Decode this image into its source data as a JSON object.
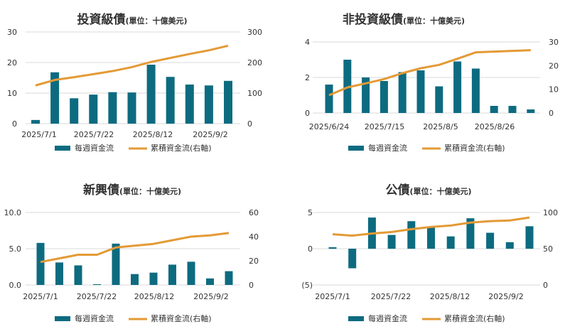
{
  "colors": {
    "bar": "#0d6b80",
    "line": "#e39a35",
    "grid": "#d9d9d9",
    "neg_label": "#c00000"
  },
  "legend": {
    "bar_label": "每週資金流",
    "line_label": "累積資金流(右軸)"
  },
  "chart_data": [
    {
      "type": "bar",
      "title": "投資級債",
      "unit": "(單位：十億美元)",
      "x_tick_labels": [
        "2025/7/1",
        "2025/7/22",
        "2025/8/12",
        "2025/9/2"
      ],
      "y_left_ticks": [
        "0",
        "10",
        "20",
        "30"
      ],
      "y_right_ticks": [
        "0",
        "100",
        "200",
        "300"
      ],
      "ylim_left": [
        0,
        30
      ],
      "ylim_right": [
        0,
        300
      ],
      "series": [
        {
          "name": "每週資金流",
          "axis": "left",
          "values": [
            1.2,
            16.8,
            8.3,
            9.5,
            10.3,
            10.2,
            19.3,
            15.3,
            12.8,
            12.5,
            14.0
          ]
        },
        {
          "name": "累積資金流(右軸)",
          "axis": "right",
          "values": [
            125,
            143,
            152,
            162,
            172,
            185,
            202,
            215,
            228,
            240,
            255
          ]
        }
      ]
    },
    {
      "type": "bar",
      "title": "非投資級債",
      "unit": "(單位：十億美元)",
      "x_tick_labels": [
        "2025/6/24",
        "2025/7/15",
        "2025/8/5",
        "2025/8/26"
      ],
      "y_left_ticks": [
        "0",
        "2",
        "4"
      ],
      "y_right_ticks": [
        "0",
        "10",
        "20",
        "30"
      ],
      "ylim_left": [
        0,
        4
      ],
      "ylim_right": [
        0,
        30
      ],
      "series": [
        {
          "name": "每週資金流",
          "axis": "left",
          "values": [
            1.6,
            3.0,
            2.0,
            1.8,
            2.3,
            2.4,
            1.5,
            2.9,
            2.5,
            0.4,
            0.4,
            0.2
          ]
        },
        {
          "name": "累積資金流(右軸)",
          "axis": "right",
          "values": [
            7.5,
            10.8,
            12.5,
            14.3,
            16.8,
            18.9,
            20.3,
            22.9,
            25.6,
            25.9,
            26.2,
            26.5
          ]
        }
      ]
    },
    {
      "type": "bar",
      "title": "新興債",
      "unit": "(單位：十億美元)",
      "x_tick_labels": [
        "2025/7/1",
        "2025/7/22",
        "2025/8/12",
        "2025/9/2"
      ],
      "y_left_ticks": [
        "0.0",
        "5.0",
        "10.0"
      ],
      "y_right_ticks": [
        "0",
        "20",
        "40",
        "60"
      ],
      "ylim_left": [
        0,
        10
      ],
      "ylim_right": [
        0,
        60
      ],
      "series": [
        {
          "name": "每週資金流",
          "axis": "left",
          "values": [
            5.8,
            3.1,
            2.7,
            0.1,
            5.7,
            1.5,
            1.7,
            2.8,
            3.2,
            0.9,
            1.9
          ]
        },
        {
          "name": "累積資金流(右軸)",
          "axis": "right",
          "values": [
            19,
            22,
            25,
            25,
            31,
            32.5,
            34,
            37,
            40,
            41,
            43
          ]
        }
      ]
    },
    {
      "type": "bar",
      "title": "公債",
      "unit": "(單位：十億美元)",
      "x_tick_labels": [
        "2025/7/1",
        "2025/7/22",
        "2025/8/12",
        "2025/9/2"
      ],
      "y_left_ticks": [
        "(5)",
        "0",
        "5"
      ],
      "y_right_ticks": [
        "0",
        "50",
        "100"
      ],
      "ylim_left": [
        -5,
        5
      ],
      "ylim_right": [
        0,
        100
      ],
      "series": [
        {
          "name": "每週資金流",
          "axis": "left",
          "values": [
            0.2,
            -2.7,
            4.3,
            1.9,
            3.8,
            2.9,
            1.7,
            4.2,
            2.2,
            0.9,
            3.1
          ]
        },
        {
          "name": "累積資金流(右軸)",
          "axis": "right",
          "values": [
            70,
            68,
            71,
            73,
            77,
            80,
            82,
            86,
            88,
            89,
            93
          ]
        }
      ]
    }
  ]
}
